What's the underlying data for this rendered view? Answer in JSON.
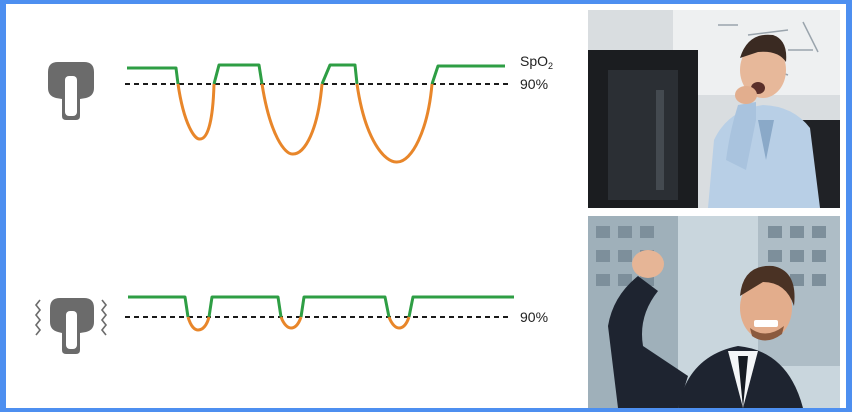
{
  "top_panel": {
    "signal_label": "SpO",
    "signal_subscript": "2",
    "threshold_label": "90%"
  },
  "bottom_panel": {
    "threshold_label": "90%"
  },
  "colors": {
    "above_threshold": "#2e9e44",
    "below_threshold": "#e8862a",
    "threshold_line": "#1a1a1a",
    "sensor": "#6b6b6b",
    "frame": "#4d8ff0"
  },
  "icons": {
    "top_sensor": "finger-clip-sensor-icon",
    "bottom_sensor": "finger-clip-sensor-with-motion-icon"
  },
  "images": {
    "top": "yawning-tired-man-at-desk-photo",
    "bottom": "cheering-businessman-photo"
  }
}
